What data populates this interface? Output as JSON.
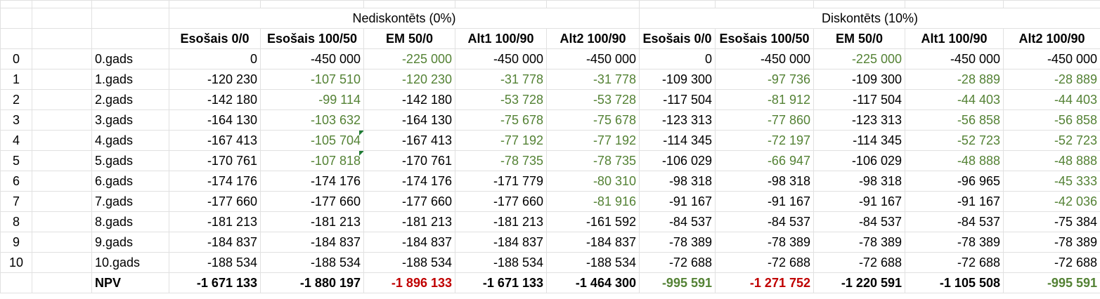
{
  "group_headers": {
    "undiscounted": "Nediskontēts (0%)",
    "discounted": "Diskontēts (10%)"
  },
  "column_headers": [
    "Esošais 0/0",
    "Esošais 100/50",
    "EM 50/0",
    "Alt1 100/90",
    "Alt2 100/90",
    "Esošais 0/0",
    "Esošais 100/50",
    "EM 50/0",
    "Alt1 100/90",
    "Alt2 100/90"
  ],
  "rows": [
    {
      "idx": "0",
      "label": "0.gads",
      "values": [
        "0",
        "-450 000",
        "-225 000",
        "-450 000",
        "-450 000",
        "0",
        "-450 000",
        "-225 000",
        "-450 000",
        "-450 000"
      ]
    },
    {
      "idx": "1",
      "label": "1.gads",
      "values": [
        "-120 230",
        "-107 510",
        "-120 230",
        "-31 778",
        "-31 778",
        "-109 300",
        "-97 736",
        "-109 300",
        "-28 889",
        "-28 889"
      ]
    },
    {
      "idx": "2",
      "label": "2.gads",
      "values": [
        "-142 180",
        "-99 114",
        "-142 180",
        "-53 728",
        "-53 728",
        "-117 504",
        "-81 912",
        "-117 504",
        "-44 403",
        "-44 403"
      ]
    },
    {
      "idx": "3",
      "label": "3.gads",
      "values": [
        "-164 130",
        "-103 632",
        "-164 130",
        "-75 678",
        "-75 678",
        "-123 313",
        "-77 860",
        "-123 313",
        "-56 858",
        "-56 858"
      ]
    },
    {
      "idx": "4",
      "label": "4.gads",
      "values": [
        "-167 413",
        "-105 704",
        "-167 413",
        "-77 192",
        "-77 192",
        "-114 345",
        "-72 197",
        "-114 345",
        "-52 723",
        "-52 723"
      ]
    },
    {
      "idx": "5",
      "label": "5.gads",
      "values": [
        "-170 761",
        "-107 818",
        "-170 761",
        "-78 735",
        "-78 735",
        "-106 029",
        "-66 947",
        "-106 029",
        "-48 888",
        "-48 888"
      ]
    },
    {
      "idx": "6",
      "label": "6.gads",
      "values": [
        "-174 176",
        "-174 176",
        "-174 176",
        "-171 779",
        "-80 310",
        "-98 318",
        "-98 318",
        "-98 318",
        "-96 965",
        "-45 333"
      ]
    },
    {
      "idx": "7",
      "label": "7.gads",
      "values": [
        "-177 660",
        "-177 660",
        "-177 660",
        "-177 660",
        "-81 916",
        "-91 167",
        "-91 167",
        "-91 167",
        "-91 167",
        "-42 036"
      ]
    },
    {
      "idx": "8",
      "label": "8.gads",
      "values": [
        "-181 213",
        "-181 213",
        "-181 213",
        "-181 213",
        "-161 592",
        "-84 537",
        "-84 537",
        "-84 537",
        "-84 537",
        "-75 384"
      ]
    },
    {
      "idx": "9",
      "label": "9.gads",
      "values": [
        "-184 837",
        "-184 837",
        "-184 837",
        "-184 837",
        "-184 837",
        "-78 389",
        "-78 389",
        "-78 389",
        "-78 389",
        "-78 389"
      ]
    },
    {
      "idx": "10",
      "label": "10.gads",
      "values": [
        "-188 534",
        "-188 534",
        "-188 534",
        "-188 534",
        "-188 534",
        "-72 688",
        "-72 688",
        "-72 688",
        "-72 688",
        "-72 688"
      ]
    }
  ],
  "npv": {
    "label": "NPV",
    "values": [
      "-1 671 133",
      "-1 880 197",
      "-1 896 133",
      "-1 671 133",
      "-1 464 300",
      "-995 591",
      "-1 271 752",
      "-1 220 591",
      "-1 105 508",
      "-995 591"
    ]
  },
  "colors": {
    "green": "#548235",
    "red": "#c00000",
    "error_indicator": "#1e7b34"
  }
}
